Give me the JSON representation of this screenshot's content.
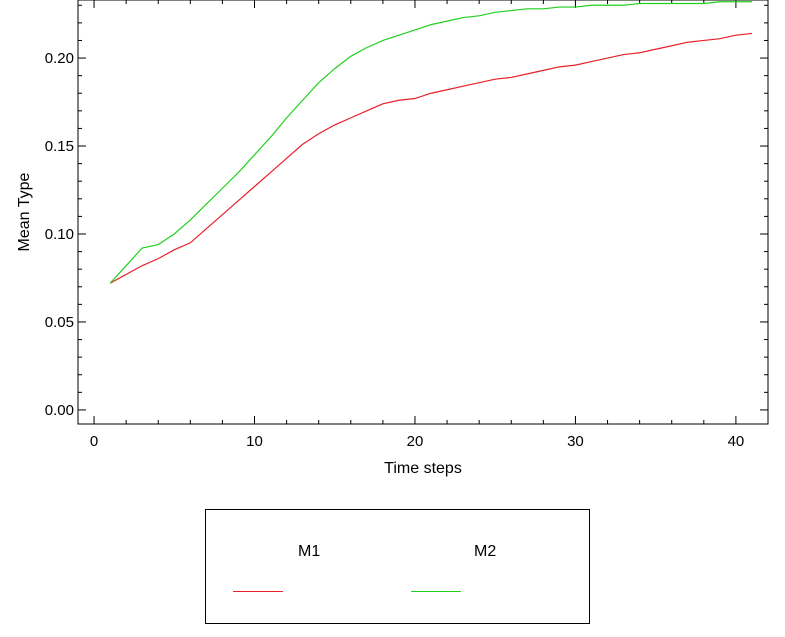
{
  "chart_data": {
    "type": "line",
    "title": "",
    "xlabel": "Time steps",
    "ylabel": "Mean Type",
    "xlim": [
      -1,
      42
    ],
    "ylim": [
      -0.008,
      0.233
    ],
    "x_ticks": [
      0,
      10,
      20,
      30,
      40
    ],
    "y_ticks": [
      0.0,
      0.05,
      0.1,
      0.15,
      0.2
    ],
    "x_tick_labels": [
      "0",
      "10",
      "20",
      "30",
      "40"
    ],
    "y_tick_labels": [
      "0.00",
      "0.05",
      "0.10",
      "0.15",
      "0.20"
    ],
    "grid": false,
    "legend_position": "bottom",
    "x": [
      1,
      2,
      3,
      4,
      5,
      6,
      7,
      8,
      9,
      10,
      11,
      12,
      13,
      14,
      15,
      16,
      17,
      18,
      19,
      20,
      21,
      22,
      23,
      24,
      25,
      26,
      27,
      28,
      29,
      30,
      31,
      32,
      33,
      34,
      35,
      36,
      37,
      38,
      39,
      40,
      41
    ],
    "series": [
      {
        "name": "M1",
        "color": "#e8202a",
        "values": [
          0.072,
          0.077,
          0.082,
          0.086,
          0.091,
          0.095,
          0.103,
          0.111,
          0.119,
          0.127,
          0.135,
          0.143,
          0.151,
          0.157,
          0.162,
          0.166,
          0.17,
          0.174,
          0.176,
          0.177,
          0.18,
          0.182,
          0.184,
          0.186,
          0.188,
          0.189,
          0.191,
          0.193,
          0.195,
          0.196,
          0.198,
          0.2,
          0.202,
          0.203,
          0.205,
          0.207,
          0.209,
          0.21,
          0.211,
          0.213,
          0.214
        ]
      },
      {
        "name": "M2",
        "color": "#22d01e",
        "values": [
          0.072,
          0.082,
          0.092,
          0.094,
          0.1,
          0.108,
          0.117,
          0.126,
          0.135,
          0.145,
          0.155,
          0.166,
          0.176,
          0.186,
          0.194,
          0.201,
          0.206,
          0.21,
          0.213,
          0.216,
          0.219,
          0.221,
          0.223,
          0.224,
          0.226,
          0.227,
          0.228,
          0.228,
          0.229,
          0.229,
          0.23,
          0.23,
          0.23,
          0.231,
          0.231,
          0.231,
          0.231,
          0.231,
          0.232,
          0.232,
          0.232
        ]
      }
    ]
  }
}
